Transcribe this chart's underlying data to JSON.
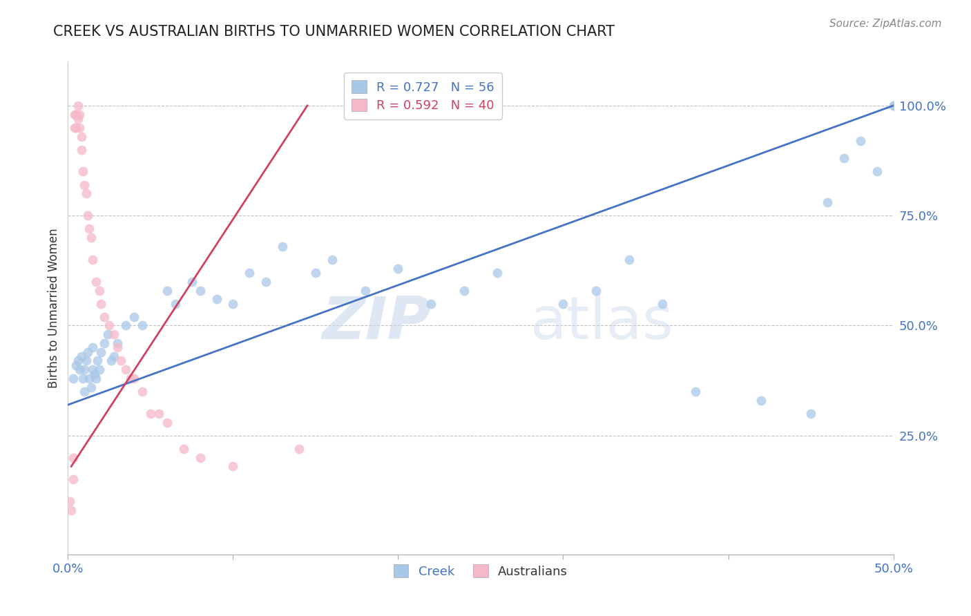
{
  "title": "CREEK VS AUSTRALIAN BIRTHS TO UNMARRIED WOMEN CORRELATION CHART",
  "source_text": "Source: ZipAtlas.com",
  "ylabel": "Births to Unmarried Women",
  "xlim": [
    0.0,
    0.5
  ],
  "ylim": [
    -0.02,
    1.1
  ],
  "xticks": [
    0.0,
    0.1,
    0.2,
    0.3,
    0.4,
    0.5
  ],
  "xticklabels": [
    "0.0%",
    "",
    "",
    "",
    "",
    "50.0%"
  ],
  "yticks": [
    0.0,
    0.25,
    0.5,
    0.75,
    1.0
  ],
  "yticklabels": [
    "",
    "25.0%",
    "50.0%",
    "75.0%",
    "100.0%"
  ],
  "legend_blue_label": "R = 0.727   N = 56",
  "legend_pink_label": "R = 0.592   N = 40",
  "blue_color": "#A8C8E8",
  "pink_color": "#F5B8C8",
  "line_blue_color": "#4472C4",
  "line_pink_color": "#D04060",
  "watermark_zip": "ZIP",
  "watermark_atlas": "atlas",
  "blue_scatter_x": [
    0.003,
    0.005,
    0.006,
    0.007,
    0.008,
    0.009,
    0.01,
    0.01,
    0.011,
    0.012,
    0.013,
    0.014,
    0.015,
    0.015,
    0.016,
    0.017,
    0.018,
    0.019,
    0.02,
    0.022,
    0.024,
    0.026,
    0.028,
    0.03,
    0.035,
    0.04,
    0.045,
    0.06,
    0.065,
    0.075,
    0.08,
    0.09,
    0.1,
    0.11,
    0.12,
    0.13,
    0.15,
    0.16,
    0.18,
    0.2,
    0.22,
    0.24,
    0.26,
    0.3,
    0.32,
    0.34,
    0.36,
    0.38,
    0.42,
    0.45,
    0.46,
    0.47,
    0.48,
    0.49,
    0.5,
    0.5
  ],
  "blue_scatter_y": [
    0.38,
    0.41,
    0.42,
    0.4,
    0.43,
    0.38,
    0.4,
    0.35,
    0.42,
    0.44,
    0.38,
    0.36,
    0.4,
    0.45,
    0.39,
    0.38,
    0.42,
    0.4,
    0.44,
    0.46,
    0.48,
    0.42,
    0.43,
    0.46,
    0.5,
    0.52,
    0.5,
    0.58,
    0.55,
    0.6,
    0.58,
    0.56,
    0.55,
    0.62,
    0.6,
    0.68,
    0.62,
    0.65,
    0.58,
    0.63,
    0.55,
    0.58,
    0.62,
    0.55,
    0.58,
    0.65,
    0.55,
    0.35,
    0.33,
    0.3,
    0.78,
    0.88,
    0.92,
    0.85,
    1.0,
    1.0
  ],
  "pink_scatter_x": [
    0.001,
    0.002,
    0.003,
    0.003,
    0.004,
    0.004,
    0.005,
    0.005,
    0.006,
    0.006,
    0.007,
    0.007,
    0.008,
    0.008,
    0.009,
    0.01,
    0.011,
    0.012,
    0.013,
    0.014,
    0.015,
    0.017,
    0.019,
    0.02,
    0.022,
    0.025,
    0.028,
    0.03,
    0.032,
    0.035,
    0.038,
    0.04,
    0.045,
    0.05,
    0.055,
    0.06,
    0.07,
    0.08,
    0.1,
    0.14
  ],
  "pink_scatter_y": [
    0.1,
    0.08,
    0.15,
    0.2,
    0.95,
    0.98,
    0.95,
    0.98,
    0.97,
    1.0,
    0.98,
    0.95,
    0.93,
    0.9,
    0.85,
    0.82,
    0.8,
    0.75,
    0.72,
    0.7,
    0.65,
    0.6,
    0.58,
    0.55,
    0.52,
    0.5,
    0.48,
    0.45,
    0.42,
    0.4,
    0.38,
    0.38,
    0.35,
    0.3,
    0.3,
    0.28,
    0.22,
    0.2,
    0.18,
    0.22
  ],
  "blue_trend_x": [
    0.0,
    0.5
  ],
  "blue_trend_y": [
    0.32,
    1.0
  ],
  "pink_trend_x": [
    0.002,
    0.145
  ],
  "pink_trend_y": [
    0.18,
    1.0
  ]
}
